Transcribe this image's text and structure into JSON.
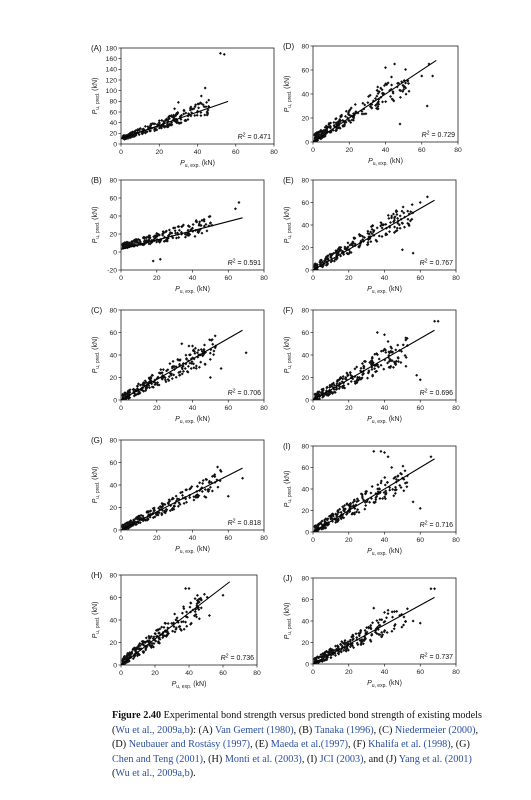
{
  "chart_data": [
    {
      "type": "scatter",
      "letter": "(A)",
      "r2_label": "R",
      "r2_value": "= 0.471",
      "xlabel_main": "P",
      "xlabel_sub": "u, exp.",
      "xlabel_unit": "(kN)",
      "ylabel_main": "P",
      "ylabel_sub": "u, pred.",
      "ylabel_unit": "(kN)",
      "xlim": [
        0,
        60
      ],
      "ylim": [
        0,
        180
      ],
      "xticks": [
        "0",
        "20",
        "40",
        "60",
        "80"
      ],
      "yticks": [
        "0",
        "20",
        "40",
        "60",
        "80",
        "100",
        "120",
        "140",
        "160",
        "180"
      ],
      "fit": [
        [
          0,
          10
        ],
        [
          56,
          80
        ]
      ],
      "cluster": {
        "xmax": 45,
        "slope": 1.25,
        "intercept": 10,
        "spread": 14
      },
      "outliers": [
        [
          52,
          170
        ],
        [
          54,
          168
        ],
        [
          44,
          105
        ],
        [
          42,
          90
        ],
        [
          30,
          78
        ],
        [
          28,
          66
        ]
      ]
    },
    {
      "type": "scatter",
      "letter": "(D)",
      "r2_label": "R",
      "r2_value": "= 0.729",
      "xlabel_main": "P",
      "xlabel_sub": "u, exp.",
      "xlabel_unit": "(kN)",
      "ylabel_main": "P",
      "ylabel_sub": "u, pred.",
      "ylabel_unit": "(kN)",
      "xlim": [
        0,
        80
      ],
      "ylim": [
        0,
        80
      ],
      "xticks": [
        "0",
        "20",
        "40",
        "60",
        "80"
      ],
      "yticks": [
        "0",
        "20",
        "40",
        "60",
        "80"
      ],
      "fit": [
        [
          0,
          0
        ],
        [
          68,
          68
        ]
      ],
      "cluster": {
        "xmax": 52,
        "slope": 0.95,
        "intercept": 2,
        "spread": 12
      },
      "outliers": [
        [
          64,
          65
        ],
        [
          66,
          55
        ],
        [
          60,
          55
        ],
        [
          45,
          65
        ],
        [
          40,
          62
        ],
        [
          63,
          30
        ],
        [
          48,
          15
        ]
      ]
    },
    {
      "type": "scatter",
      "letter": "(B)",
      "r2_label": "R",
      "r2_value": "= 0.591",
      "xlabel_main": "P",
      "xlabel_sub": "u, exp.",
      "xlabel_unit": "(kN)",
      "ylabel_main": "P",
      "ylabel_sub": "u, pred.",
      "ylabel_unit": "(kN)",
      "xlim": [
        0,
        80
      ],
      "ylim": [
        -20,
        80
      ],
      "xticks": [
        "0",
        "20",
        "40",
        "60",
        "80"
      ],
      "yticks": [
        "-20",
        "0",
        "20",
        "40",
        "60",
        "80"
      ],
      "fit": [
        [
          0,
          3
        ],
        [
          68,
          38
        ]
      ],
      "cluster": {
        "xmax": 50,
        "slope": 0.45,
        "intercept": 6,
        "spread": 10
      },
      "outliers": [
        [
          66,
          55
        ],
        [
          64,
          48
        ],
        [
          50,
          32
        ],
        [
          22,
          -8
        ],
        [
          18,
          -10
        ]
      ]
    },
    {
      "type": "scatter",
      "letter": "(E)",
      "r2_label": "R",
      "r2_value": "= 0.767",
      "xlabel_main": "P",
      "xlabel_sub": "u, exp.",
      "xlabel_unit": "(kN)",
      "ylabel_main": "P",
      "ylabel_sub": "u, pred.",
      "ylabel_unit": "(kN)",
      "xlim": [
        0,
        80
      ],
      "ylim": [
        0,
        80
      ],
      "xticks": [
        "0",
        "20",
        "40",
        "60",
        "80"
      ],
      "yticks": [
        "0",
        "20",
        "40",
        "60",
        "80"
      ],
      "fit": [
        [
          0,
          0
        ],
        [
          68,
          62
        ]
      ],
      "cluster": {
        "xmax": 55,
        "slope": 0.9,
        "intercept": 1,
        "spread": 11
      },
      "outliers": [
        [
          64,
          65
        ],
        [
          60,
          60
        ],
        [
          44,
          48
        ],
        [
          50,
          18
        ],
        [
          56,
          15
        ]
      ]
    },
    {
      "type": "scatter",
      "letter": "(C)",
      "r2_label": "R",
      "r2_value": "= 0.706",
      "xlabel_main": "P",
      "xlabel_sub": "u, exp.",
      "xlabel_unit": "(kN)",
      "ylabel_main": "P",
      "ylabel_sub": "u, pred.",
      "ylabel_unit": "(kN)",
      "xlim": [
        0,
        80
      ],
      "ylim": [
        0,
        80
      ],
      "xticks": [
        "0",
        "20",
        "40",
        "60",
        "80"
      ],
      "yticks": [
        "0",
        "20",
        "40",
        "60",
        "80"
      ],
      "fit": [
        [
          0,
          0
        ],
        [
          68,
          62
        ]
      ],
      "cluster": {
        "xmax": 52,
        "slope": 0.85,
        "intercept": 1,
        "spread": 11
      },
      "outliers": [
        [
          34,
          50
        ],
        [
          38,
          48
        ],
        [
          40,
          48
        ],
        [
          44,
          40
        ],
        [
          70,
          42
        ],
        [
          50,
          20
        ],
        [
          56,
          28
        ]
      ]
    },
    {
      "type": "scatter",
      "letter": "(F)",
      "r2_label": "R",
      "r2_value": "= 0.696",
      "xlabel_main": "P",
      "xlabel_sub": "u, exp.",
      "xlabel_unit": "(kN)",
      "ylabel_main": "P",
      "ylabel_sub": "u, pred.",
      "ylabel_unit": "(kN)",
      "xlim": [
        0,
        80
      ],
      "ylim": [
        0,
        80
      ],
      "xticks": [
        "0",
        "20",
        "40",
        "60",
        "80"
      ],
      "yticks": [
        "0",
        "20",
        "40",
        "60",
        "80"
      ],
      "fit": [
        [
          0,
          0
        ],
        [
          68,
          62
        ]
      ],
      "cluster": {
        "xmax": 52,
        "slope": 0.85,
        "intercept": 1,
        "spread": 12
      },
      "outliers": [
        [
          68,
          70
        ],
        [
          70,
          70
        ],
        [
          36,
          60
        ],
        [
          40,
          58
        ],
        [
          42,
          52
        ],
        [
          44,
          46
        ],
        [
          52,
          30
        ],
        [
          58,
          22
        ],
        [
          60,
          18
        ]
      ]
    },
    {
      "type": "scatter",
      "letter": "(G)",
      "r2_label": "R",
      "r2_value": "= 0.818",
      "xlabel_main": "P",
      "xlabel_sub": "u, exp.",
      "xlabel_unit": "(kN)",
      "ylabel_main": "P",
      "ylabel_sub": "u, pred.",
      "ylabel_unit": "(kN)",
      "xlim": [
        0,
        80
      ],
      "ylim": [
        0,
        80
      ],
      "xticks": [
        "0",
        "20",
        "40",
        "60",
        "80"
      ],
      "yticks": [
        "0",
        "20",
        "40",
        "60",
        "80"
      ],
      "fit": [
        [
          0,
          0
        ],
        [
          68,
          55
        ]
      ],
      "cluster": {
        "xmax": 55,
        "slope": 0.75,
        "intercept": 1,
        "spread": 9
      },
      "outliers": [
        [
          54,
          56
        ],
        [
          56,
          52
        ],
        [
          68,
          46
        ],
        [
          46,
          44
        ],
        [
          44,
          42
        ],
        [
          60,
          30
        ]
      ]
    },
    {
      "type": "scatter",
      "letter": "(I)",
      "r2_label": "R",
      "r2_value": "= 0.716",
      "xlabel_main": "P",
      "xlabel_sub": "u, exp.",
      "xlabel_unit": "(kN)",
      "ylabel_main": "P",
      "ylabel_sub": "u, pred.",
      "ylabel_unit": "(kN)",
      "xlim": [
        0,
        80
      ],
      "ylim": [
        0,
        80
      ],
      "xticks": [
        "0",
        "20",
        "40",
        "60",
        "80"
      ],
      "yticks": [
        "0",
        "20",
        "40",
        "60",
        "80"
      ],
      "fit": [
        [
          0,
          0
        ],
        [
          68,
          68
        ]
      ],
      "cluster": {
        "xmax": 52,
        "slope": 0.95,
        "intercept": 1,
        "spread": 12
      },
      "outliers": [
        [
          34,
          75
        ],
        [
          38,
          75
        ],
        [
          40,
          74
        ],
        [
          42,
          70
        ],
        [
          66,
          70
        ],
        [
          44,
          60
        ],
        [
          50,
          50
        ],
        [
          56,
          28
        ],
        [
          60,
          22
        ]
      ]
    },
    {
      "type": "scatter",
      "letter": "(H)",
      "r2_label": "R",
      "r2_value": "= 0.736",
      "xlabel_main": "P",
      "xlabel_sub": "u, exp.",
      "xlabel_unit": "(kN)",
      "ylabel_main": "P",
      "ylabel_sub": "u, pred.",
      "ylabel_unit": "(kN)",
      "xlim": [
        0,
        80
      ],
      "ylim": [
        0,
        80
      ],
      "xticks": [
        "0",
        "20",
        "40",
        "60",
        "80"
      ],
      "yticks": [
        "0",
        "20",
        "40",
        "60",
        "80"
      ],
      "fit": [
        [
          0,
          0
        ],
        [
          64,
          74
        ]
      ],
      "cluster": {
        "xmax": 50,
        "slope": 1.05,
        "intercept": 2,
        "spread": 12
      },
      "outliers": [
        [
          40,
          68
        ],
        [
          38,
          68
        ],
        [
          60,
          62
        ],
        [
          52,
          44
        ],
        [
          46,
          56
        ]
      ]
    },
    {
      "type": "scatter",
      "letter": "(J)",
      "r2_label": "R",
      "r2_value": "= 0.737",
      "xlabel_main": "P",
      "xlabel_sub": "u, exp.",
      "xlabel_unit": "(kN)",
      "ylabel_main": "P",
      "ylabel_sub": "u, pred.",
      "ylabel_unit": "(kN)",
      "xlim": [
        0,
        80
      ],
      "ylim": [
        0,
        80
      ],
      "xticks": [
        "0",
        "20",
        "40",
        "60",
        "80"
      ],
      "yticks": [
        "0",
        "20",
        "40",
        "60",
        "80"
      ],
      "fit": [
        [
          0,
          0
        ],
        [
          68,
          62
        ]
      ],
      "cluster": {
        "xmax": 52,
        "slope": 0.85,
        "intercept": 1,
        "spread": 11
      },
      "outliers": [
        [
          66,
          70
        ],
        [
          68,
          70
        ],
        [
          34,
          52
        ],
        [
          42,
          50
        ],
        [
          40,
          48
        ],
        [
          56,
          40
        ],
        [
          60,
          38
        ]
      ]
    }
  ],
  "caption": {
    "figure_label": "Figure 2.40",
    "text_1": " Experimental bond strength versus predicted bond strength of existing models (",
    "cite_1": "Wu et al., 2009a,b",
    "text_2": "): (A) ",
    "cite_2": "Van Gemert (1980)",
    "text_3": ", (B) ",
    "cite_3": "Tanaka (1996)",
    "text_4": ", (C) ",
    "cite_4": "Niedermeier (2000)",
    "text_5": ", (D) ",
    "cite_5": "Neubauer and Rostásy (1997)",
    "text_6": ", (E) ",
    "cite_6": "Maeda et al.(1997)",
    "text_7": ", (F) ",
    "cite_7": "Khalifa et al. (1998)",
    "text_8": ", (G) ",
    "cite_8": "Chen and Teng (2001)",
    "text_9": ", (H) ",
    "cite_9": "Monti et al. (2003)",
    "text_10": ", (I) ",
    "cite_10": "JCI (2003)",
    "text_11": ", and (J) ",
    "cite_11": "Yang et al. (2001)",
    "text_12": " (",
    "cite_12": "Wu et al., 2009a,b",
    "text_13": ")."
  }
}
